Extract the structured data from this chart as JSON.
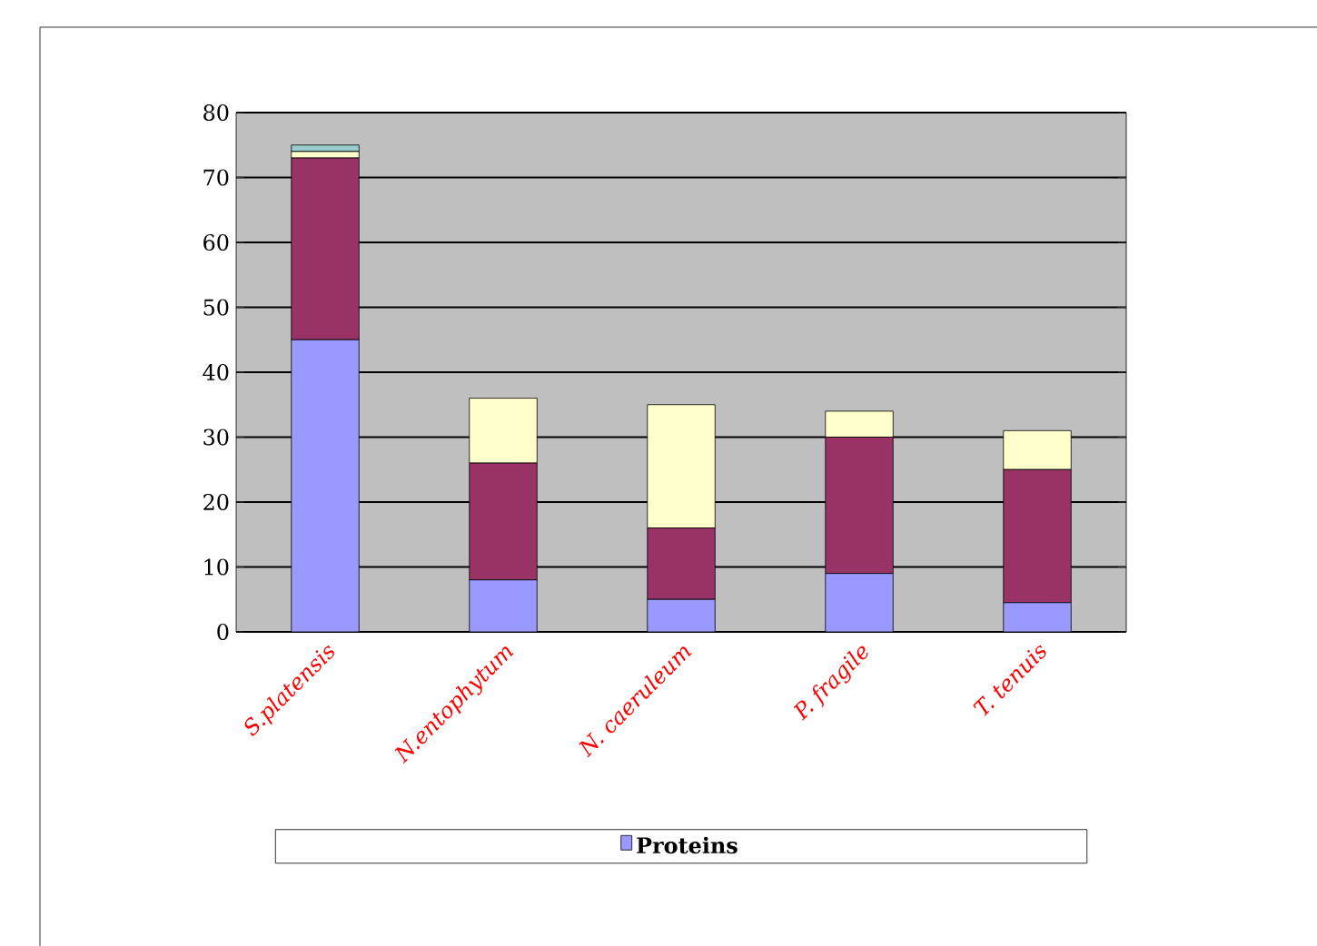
{
  "chart_data": {
    "type": "bar",
    "stacked": true,
    "categories": [
      "S.platensis",
      "N.entophytum",
      "N. caeruleum",
      "P. fragile",
      "T. tenuis"
    ],
    "series": [
      {
        "name": "Proteins",
        "color": "#9999ff",
        "values": [
          45,
          8,
          5,
          9,
          4.5
        ]
      },
      {
        "color": "#993366",
        "values": [
          28,
          18,
          11,
          21,
          20.5
        ]
      },
      {
        "color": "#ffffcc",
        "values": [
          1,
          10,
          19,
          4,
          6
        ]
      },
      {
        "color": "#99cccc",
        "values": [
          1,
          0,
          0,
          0,
          0
        ]
      }
    ],
    "ylim": [
      0,
      80
    ],
    "yticks": [
      0,
      10,
      20,
      30,
      40,
      50,
      60,
      70,
      80
    ],
    "grid": "y",
    "legend": "bottom"
  }
}
